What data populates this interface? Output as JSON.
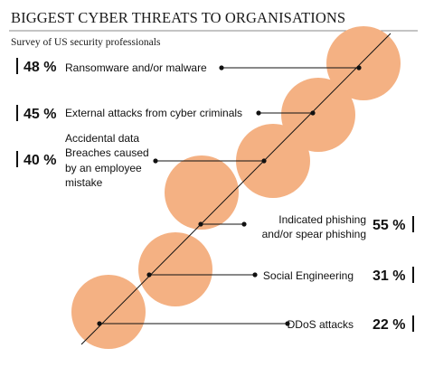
{
  "chart_data": {
    "type": "bar",
    "title": "BIGGEST CYBER THREATS TO ORGANISATIONS",
    "subtitle": "Survey of US security professionals",
    "unit": "%",
    "categories": [
      "Ransomware and/or malware",
      "External attacks from cyber criminals",
      "Accidental data Breaches caused by an employee mistake",
      "Indicated phishing and/or spear phishing",
      "Social Engineering",
      "DDoS attacks"
    ],
    "values": [
      48,
      45,
      40,
      55,
      31,
      22
    ],
    "label_lines": [
      [
        "Ransomware and/or malware"
      ],
      [
        "External attacks from cyber criminals"
      ],
      [
        "Accidental data",
        "Breaches caused",
        "by an employee",
        "mistake"
      ],
      [
        "Indicated phishing",
        "and/or spear phishing"
      ],
      [
        "Social Engineering"
      ],
      [
        "DDoS attacks"
      ]
    ],
    "value_labels": [
      "48 %",
      "45 %",
      "40 %",
      "55 %",
      "31 %",
      "22 %"
    ],
    "label_side": [
      "left",
      "left",
      "left",
      "right",
      "right",
      "right"
    ]
  },
  "colors": {
    "circle": "#f4b183",
    "line": "#111111",
    "rule": "#808080",
    "text": "#111111"
  }
}
